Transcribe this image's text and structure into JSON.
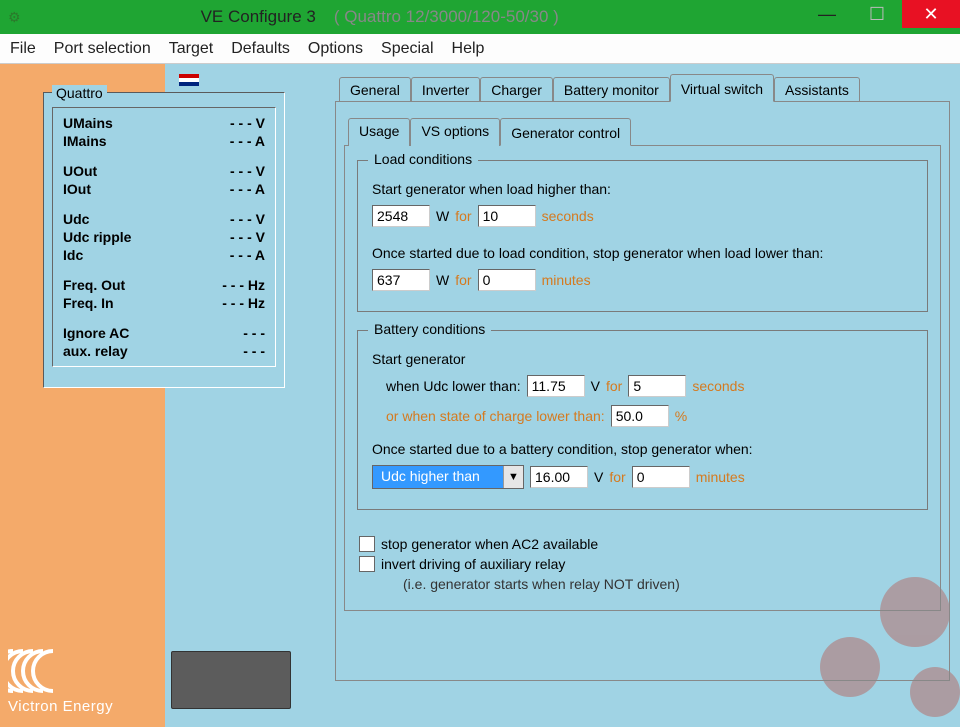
{
  "window": {
    "title": "VE Configure 3",
    "subtitle": "( Quattro 12/3000/120-50/30 )"
  },
  "menu": [
    "File",
    "Port selection",
    "Target",
    "Defaults",
    "Options",
    "Special",
    "Help"
  ],
  "quattro": {
    "title": "Quattro",
    "rows": [
      [
        {
          "label": "UMains",
          "value": "- - - V"
        },
        {
          "label": "IMains",
          "value": "- - - A"
        }
      ],
      [
        {
          "label": "UOut",
          "value": "- - - V"
        },
        {
          "label": "IOut",
          "value": "- - - A"
        }
      ],
      [
        {
          "label": "Udc",
          "value": "- - - V"
        },
        {
          "label": "Udc ripple",
          "value": "- - - V"
        },
        {
          "label": "Idc",
          "value": "- - - A"
        }
      ],
      [
        {
          "label": "Freq. Out",
          "value": "- - - Hz"
        },
        {
          "label": "Freq. In",
          "value": "- - - Hz"
        }
      ],
      [
        {
          "label": "Ignore AC",
          "value": "- - -"
        },
        {
          "label": "aux. relay",
          "value": "- - -"
        }
      ]
    ]
  },
  "tabs": {
    "items": [
      "General",
      "Inverter",
      "Charger",
      "Battery monitor",
      "Virtual switch",
      "Assistants"
    ],
    "active": "Virtual switch"
  },
  "subtabs": {
    "items": [
      "Usage",
      "VS options",
      "Generator control"
    ],
    "active": "Generator control"
  },
  "load": {
    "legend": "Load conditions",
    "start_label": "Start generator when load higher than:",
    "start_watts": "2548",
    "w": "W",
    "for": "for",
    "start_time": "10",
    "start_unit": "seconds",
    "stop_label": "Once started due to load condition, stop generator when load lower than:",
    "stop_watts": "637",
    "stop_time": "0",
    "stop_unit": "minutes"
  },
  "battery": {
    "legend": "Battery conditions",
    "start": "Start generator",
    "udc_label": "when Udc lower than:",
    "udc_value": "11.75",
    "v": "V",
    "for": "for",
    "udc_time": "5",
    "udc_unit": "seconds",
    "soc_label": "or when state of charge lower than:",
    "soc_value": "50.0",
    "soc_unit": "%",
    "stop_label": "Once started due to a battery condition, stop generator when:",
    "combo": "Udc higher than",
    "stop_value": "16.00",
    "stop_time": "0",
    "stop_unit": "minutes"
  },
  "options": {
    "ac2": "stop generator when AC2 available",
    "invert": "invert driving of auxiliary relay",
    "invert_desc": "(i.e. generator starts when relay NOT driven)"
  },
  "logo": "Victron Energy"
}
